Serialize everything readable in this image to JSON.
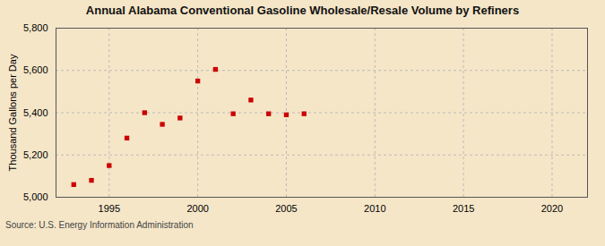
{
  "chart_data": {
    "type": "scatter",
    "title": "Annual Alabama Conventional Gasoline Wholesale/Resale Volume by Refiners",
    "ylabel": "Thousand Gallons per Day",
    "source": "Source: U.S. Energy Information Administration",
    "x": [
      1993,
      1994,
      1995,
      1996,
      1997,
      1998,
      1999,
      2000,
      2001,
      2002,
      2003,
      2004,
      2005,
      2006
    ],
    "values": [
      5060,
      5080,
      5150,
      5280,
      5400,
      5345,
      5375,
      5550,
      5605,
      5395,
      5460,
      5395,
      5390,
      5395
    ],
    "color": "#cc0000",
    "marker": "square",
    "xlim": [
      1992,
      2022
    ],
    "ylim": [
      5000,
      5800
    ],
    "xticks": [
      1995,
      2000,
      2005,
      2010,
      2015,
      2020
    ],
    "yticks": [
      {
        "value": 5000,
        "label": "5,000"
      },
      {
        "value": 5200,
        "label": "5,200"
      },
      {
        "value": 5400,
        "label": "5,400"
      },
      {
        "value": 5600,
        "label": "5,600"
      },
      {
        "value": 5800,
        "label": "5,800"
      }
    ],
    "grid": true
  }
}
